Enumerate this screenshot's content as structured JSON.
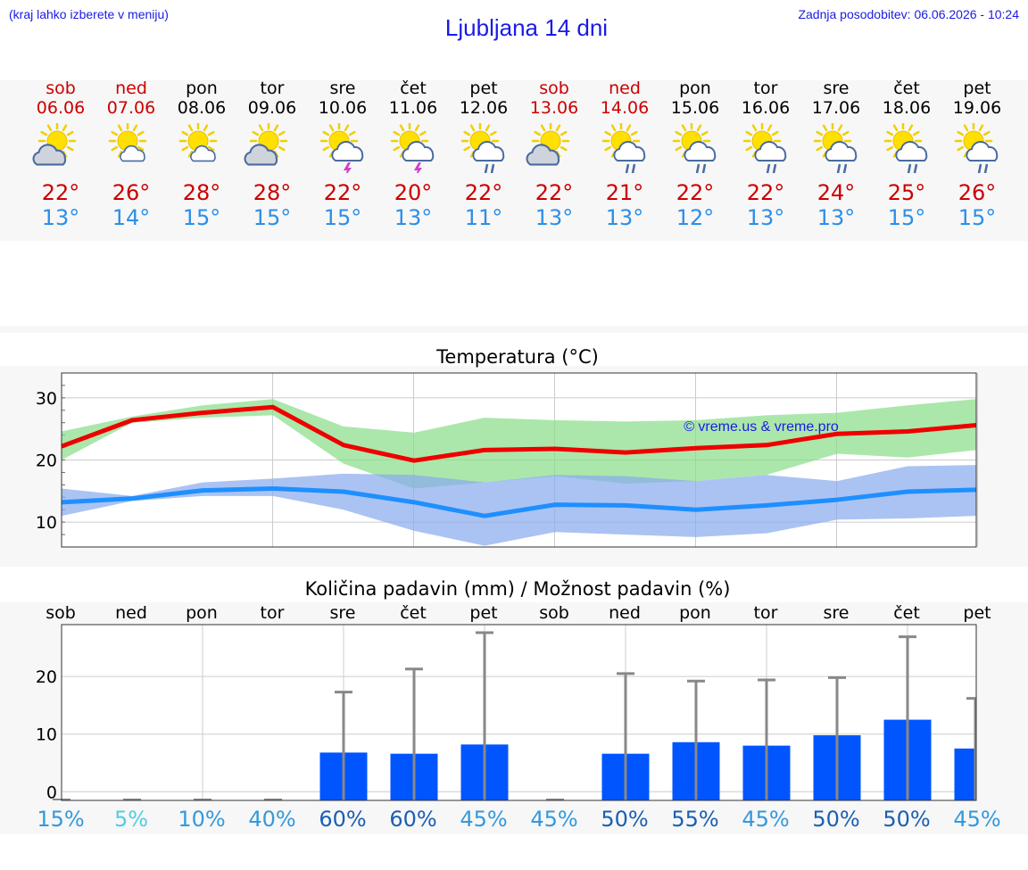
{
  "header": {
    "hint": "(kraj lahko izberete v meniju)",
    "title": "Ljubljana 14 dni",
    "updated": "Zadnja posodobitev: 06.06.2026 - 10:24"
  },
  "days": [
    {
      "name": "sob",
      "date": "06.06",
      "weekend": true,
      "icon": "sun-cloud-icon",
      "high": "22°",
      "low": "13°",
      "precip_prob": "15%",
      "prob_color": "#3399dd"
    },
    {
      "name": "ned",
      "date": "07.06",
      "weekend": true,
      "icon": "sun-small-cloud-icon",
      "high": "26°",
      "low": "14°",
      "precip_prob": "5%",
      "prob_color": "#55ccdd"
    },
    {
      "name": "pon",
      "date": "08.06",
      "weekend": false,
      "icon": "sun-small-cloud-icon",
      "high": "28°",
      "low": "15°",
      "precip_prob": "10%",
      "prob_color": "#3399dd"
    },
    {
      "name": "tor",
      "date": "09.06",
      "weekend": false,
      "icon": "sun-cloud-icon",
      "high": "28°",
      "low": "15°",
      "precip_prob": "40%",
      "prob_color": "#3399dd"
    },
    {
      "name": "sre",
      "date": "10.06",
      "weekend": false,
      "icon": "sun-thunder-icon",
      "high": "22°",
      "low": "15°",
      "precip_prob": "60%",
      "prob_color": "#1a5fb4"
    },
    {
      "name": "čet",
      "date": "11.06",
      "weekend": false,
      "icon": "sun-thunder-icon",
      "high": "20°",
      "low": "13°",
      "precip_prob": "60%",
      "prob_color": "#1a5fb4"
    },
    {
      "name": "pet",
      "date": "12.06",
      "weekend": false,
      "icon": "sun-rain-icon",
      "high": "22°",
      "low": "11°",
      "precip_prob": "45%",
      "prob_color": "#3399dd"
    },
    {
      "name": "sob",
      "date": "13.06",
      "weekend": true,
      "icon": "sun-cloud-icon",
      "high": "22°",
      "low": "13°",
      "precip_prob": "45%",
      "prob_color": "#3399dd"
    },
    {
      "name": "ned",
      "date": "14.06",
      "weekend": true,
      "icon": "sun-rain-icon",
      "high": "21°",
      "low": "13°",
      "precip_prob": "50%",
      "prob_color": "#1a5fb4"
    },
    {
      "name": "pon",
      "date": "15.06",
      "weekend": false,
      "icon": "sun-rain-icon",
      "high": "22°",
      "low": "12°",
      "precip_prob": "55%",
      "prob_color": "#1a5fb4"
    },
    {
      "name": "tor",
      "date": "16.06",
      "weekend": false,
      "icon": "sun-rain-icon",
      "high": "22°",
      "low": "13°",
      "precip_prob": "45%",
      "prob_color": "#3399dd"
    },
    {
      "name": "sre",
      "date": "17.06",
      "weekend": false,
      "icon": "sun-rain-icon",
      "high": "24°",
      "low": "13°",
      "precip_prob": "50%",
      "prob_color": "#1a5fb4"
    },
    {
      "name": "čet",
      "date": "18.06",
      "weekend": false,
      "icon": "sun-rain-icon",
      "high": "25°",
      "low": "15°",
      "precip_prob": "50%",
      "prob_color": "#1a5fb4"
    },
    {
      "name": "pet",
      "date": "19.06",
      "weekend": false,
      "icon": "sun-rain-icon",
      "high": "26°",
      "low": "15°",
      "precip_prob": "45%",
      "prob_color": "#3399dd"
    }
  ],
  "colors": {
    "weekend_text": "#cc0000",
    "high": "#cc0000",
    "low": "#2b8fe8",
    "high_line": "#ee0000",
    "high_band": "#88dd88",
    "low_line": "#1e8fff",
    "low_band": "#88aaee",
    "bar": "#0055ff",
    "whisker": "#888888",
    "watermark": "#1a1ae6"
  },
  "chart_data": [
    {
      "type": "line",
      "title": "Temperatura (°C)",
      "watermark": "© vreme.us & vreme.pro",
      "yticks": [
        "10",
        "20",
        "30"
      ],
      "ylim": [
        6,
        34
      ],
      "grid": true,
      "x": [
        "06.06",
        "07.06",
        "08.06",
        "09.06",
        "10.06",
        "11.06",
        "12.06",
        "13.06",
        "14.06",
        "15.06",
        "16.06",
        "17.06",
        "18.06",
        "19.06"
      ],
      "series": [
        {
          "values": [
            22.2,
            26.4,
            27.6,
            28.5,
            22.4,
            19.9,
            21.6,
            21.8,
            21.2,
            21.9,
            22.4,
            24.2,
            24.6,
            25.6
          ],
          "band_low": [
            20.0,
            26.0,
            26.8,
            27.2,
            19.4,
            15.4,
            16.4,
            17.4,
            16.2,
            16.6,
            17.6,
            21.0,
            20.4,
            21.6
          ],
          "band_high": [
            24.6,
            27.0,
            28.8,
            29.8,
            25.4,
            24.4,
            26.8,
            26.4,
            26.2,
            26.4,
            27.2,
            27.6,
            28.8,
            29.8
          ]
        },
        {
          "values": [
            13.2,
            13.8,
            15.1,
            15.4,
            14.9,
            13.2,
            11.0,
            12.8,
            12.7,
            12.0,
            12.7,
            13.6,
            14.9,
            15.2
          ],
          "band_low": [
            11.0,
            13.4,
            14.2,
            14.2,
            12.0,
            8.6,
            6.2,
            8.4,
            8.0,
            7.6,
            8.2,
            10.4,
            10.6,
            11.0
          ],
          "band_high": [
            15.4,
            14.2,
            16.4,
            17.0,
            17.8,
            17.6,
            16.4,
            17.6,
            17.4,
            16.6,
            17.6,
            16.6,
            19.0,
            19.2
          ]
        }
      ]
    },
    {
      "type": "bar",
      "title": "Količina padavin (mm) / Možnost padavin (%)",
      "yticks": [
        "0",
        "10",
        "20"
      ],
      "ylim": [
        -1.5,
        29
      ],
      "grid": true,
      "categories": [
        "sob",
        "ned",
        "pon",
        "tor",
        "sre",
        "čet",
        "pet",
        "sob",
        "ned",
        "pon",
        "tor",
        "sre",
        "čet",
        "pet"
      ],
      "values": [
        0,
        0,
        0,
        0,
        6.8,
        6.6,
        8.2,
        0,
        6.6,
        8.6,
        8.0,
        9.8,
        12.5,
        7.5
      ],
      "range_max": [
        0,
        0,
        0,
        0,
        17.3,
        21.3,
        27.6,
        0,
        20.5,
        19.2,
        19.4,
        19.8,
        26.9,
        16.2
      ],
      "precip_prob": [
        "15%",
        "5%",
        "10%",
        "40%",
        "60%",
        "60%",
        "45%",
        "45%",
        "50%",
        "55%",
        "45%",
        "50%",
        "50%",
        "45%"
      ]
    }
  ]
}
